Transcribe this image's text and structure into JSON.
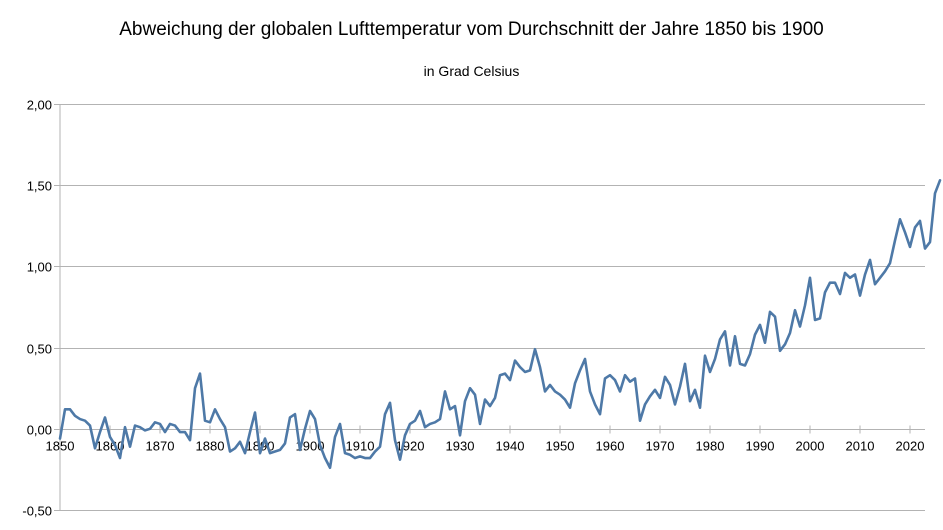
{
  "chart_data": {
    "type": "line",
    "title": "Abweichung der globalen Lufttemperatur vom Durchschnitt der Jahre 1850 bis 1900",
    "subtitle": "in Grad Celsius",
    "xlabel": "",
    "ylabel": "",
    "xlim": [
      1850,
      2023
    ],
    "ylim": [
      -0.5,
      2.0
    ],
    "grid": true,
    "legend": "none",
    "x_ticks": [
      "1850",
      "1860",
      "1870",
      "1880",
      "1890",
      "1900",
      "1910",
      "1920",
      "1930",
      "1940",
      "1950",
      "1960",
      "1970",
      "1980",
      "1990",
      "2000",
      "2010",
      "2020"
    ],
    "y_ticks": [
      "2,00",
      "1,50",
      "1,00",
      "0,50",
      "0,00",
      "-0,50"
    ],
    "series": [
      {
        "color": "#4e79a7",
        "x_start": 1850,
        "values": [
          -0.06,
          0.12,
          0.12,
          0.08,
          0.06,
          0.05,
          0.02,
          -0.12,
          -0.02,
          0.07,
          -0.05,
          -0.1,
          -0.18,
          0.01,
          -0.11,
          0.02,
          0.01,
          -0.01,
          0.0,
          0.04,
          0.03,
          -0.02,
          0.03,
          0.02,
          -0.02,
          -0.02,
          -0.07,
          0.25,
          0.34,
          0.05,
          0.04,
          0.12,
          0.06,
          0.01,
          -0.14,
          -0.12,
          -0.08,
          -0.15,
          -0.02,
          0.1,
          -0.15,
          -0.06,
          -0.15,
          -0.14,
          -0.13,
          -0.09,
          0.07,
          0.09,
          -0.13,
          0.0,
          0.11,
          0.06,
          -0.1,
          -0.18,
          -0.24,
          -0.05,
          0.03,
          -0.15,
          -0.16,
          -0.18,
          -0.17,
          -0.18,
          -0.18,
          -0.14,
          -0.11,
          0.09,
          0.16,
          -0.07,
          -0.19,
          -0.04,
          0.03,
          0.05,
          0.11,
          0.01,
          0.03,
          0.04,
          0.06,
          0.23,
          0.12,
          0.14,
          -0.04,
          0.17,
          0.25,
          0.21,
          0.03,
          0.18,
          0.14,
          0.19,
          0.33,
          0.34,
          0.3,
          0.42,
          0.38,
          0.35,
          0.36,
          0.49,
          0.38,
          0.23,
          0.27,
          0.23,
          0.21,
          0.18,
          0.13,
          0.28,
          0.36,
          0.43,
          0.23,
          0.15,
          0.09,
          0.31,
          0.33,
          0.3,
          0.23,
          0.33,
          0.29,
          0.31,
          0.05,
          0.15,
          0.2,
          0.24,
          0.19,
          0.32,
          0.27,
          0.15,
          0.26,
          0.4,
          0.17,
          0.24,
          0.13,
          0.45,
          0.35,
          0.43,
          0.55,
          0.6,
          0.39,
          0.57,
          0.4,
          0.39,
          0.46,
          0.58,
          0.64,
          0.53,
          0.72,
          0.69,
          0.48,
          0.52,
          0.59,
          0.73,
          0.63,
          0.76,
          0.93,
          0.67,
          0.68,
          0.84,
          0.9,
          0.9,
          0.83,
          0.96,
          0.93,
          0.95,
          0.82,
          0.95,
          1.04,
          0.89,
          0.93,
          0.97,
          1.02,
          1.16,
          1.29,
          1.21,
          1.12,
          1.24,
          1.28,
          1.11,
          1.15,
          1.45,
          1.53
        ]
      }
    ]
  }
}
